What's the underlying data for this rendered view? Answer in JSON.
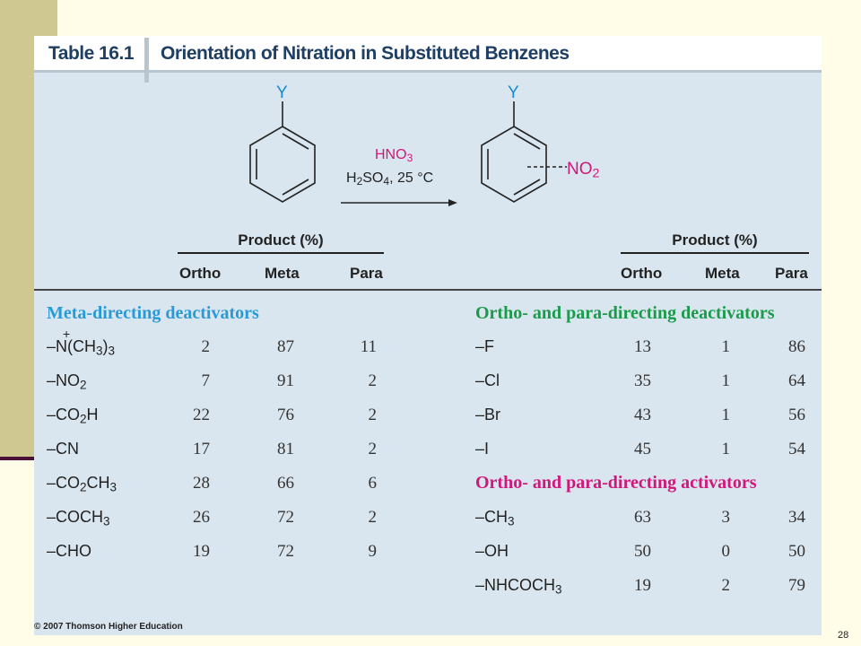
{
  "table": {
    "label": "Table 16.1",
    "title": "Orientation of Nitration in Substituted Benzenes"
  },
  "scheme": {
    "substituent_label": "Y",
    "reagent_top": "HNO3",
    "reagent_bottom": "H2SO4, 25 °C",
    "product_group": "NO2"
  },
  "colors": {
    "meta_section": "#2a9ad6",
    "op_deactivator_section": "#1a9a4a",
    "op_activator_section": "#d0177a",
    "title": "#1e3f63"
  },
  "columns": {
    "group_header": "Product (%)",
    "ortho": "Ortho",
    "meta": "Meta",
    "para": "Para"
  },
  "sections": {
    "meta_deactivators": {
      "title": "Meta-directing deactivators",
      "rows": [
        {
          "sub": "–N(CH3)3",
          "plus": "+",
          "ortho": "2",
          "meta": "87",
          "para": "11"
        },
        {
          "sub": "–NO2",
          "ortho": "7",
          "meta": "91",
          "para": "2"
        },
        {
          "sub": "–CO2H",
          "ortho": "22",
          "meta": "76",
          "para": "2"
        },
        {
          "sub": "–CN",
          "ortho": "17",
          "meta": "81",
          "para": "2"
        },
        {
          "sub": "–CO2CH3",
          "ortho": "28",
          "meta": "66",
          "para": "6"
        },
        {
          "sub": "–COCH3",
          "ortho": "26",
          "meta": "72",
          "para": "2"
        },
        {
          "sub": "–CHO",
          "ortho": "19",
          "meta": "72",
          "para": "9"
        }
      ]
    },
    "op_deactivators": {
      "title": "Ortho- and para-directing deactivators",
      "rows": [
        {
          "sub": "–F",
          "ortho": "13",
          "meta": "1",
          "para": "86"
        },
        {
          "sub": "–Cl",
          "ortho": "35",
          "meta": "1",
          "para": "64"
        },
        {
          "sub": "–Br",
          "ortho": "43",
          "meta": "1",
          "para": "56"
        },
        {
          "sub": "–I",
          "ortho": "45",
          "meta": "1",
          "para": "54"
        }
      ]
    },
    "op_activators": {
      "title": "Ortho- and para-directing activators",
      "rows": [
        {
          "sub": "–CH3",
          "ortho": "63",
          "meta": "3",
          "para": "34"
        },
        {
          "sub": "–OH",
          "ortho": "50",
          "meta": "0",
          "para": "50"
        },
        {
          "sub": "–NHCOCH3",
          "ortho": "19",
          "meta": "2",
          "para": "79"
        }
      ]
    }
  },
  "footer": {
    "copyright": "© 2007 Thomson Higher Education",
    "slide_number": "28"
  }
}
